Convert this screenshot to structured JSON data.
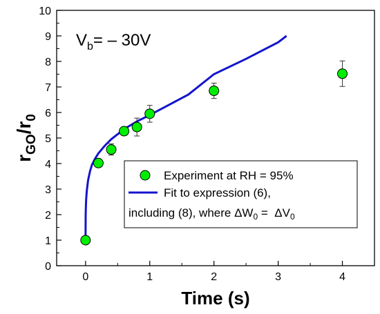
{
  "chart_data": {
    "type": "scatter",
    "xlabel": "Time (s)",
    "ylabel": "r",
    "ylabel_sub1": "GO",
    "ylabel_mid": "/r",
    "ylabel_sub2": "0",
    "xlim": [
      -0.45,
      4.5
    ],
    "ylim": [
      0,
      10
    ],
    "xticks": [
      0,
      1,
      2,
      3,
      4
    ],
    "yticks": [
      0,
      1,
      2,
      3,
      4,
      5,
      6,
      7,
      8,
      9,
      10
    ],
    "annotation": {
      "main": "V",
      "sub": "b",
      "rest": "= – 30V"
    },
    "grid": false,
    "legend_position": "bottom-right",
    "series": [
      {
        "name": "Experiment at RH = 95%",
        "kind": "points",
        "color": "#00ee00",
        "x": [
          0,
          0.2,
          0.4,
          0.6,
          0.8,
          1.0,
          2.0,
          4.0
        ],
        "y": [
          1.0,
          4.02,
          4.55,
          5.27,
          5.43,
          5.95,
          6.85,
          7.52
        ],
        "err": [
          0,
          0,
          0.22,
          0.1,
          0.35,
          0.33,
          0.3,
          0.5
        ]
      },
      {
        "name": "Fit to expression (6),",
        "name_line2": "including (8), where ΔW",
        "name_sub1": "0",
        "name_mid": " =  ΔV",
        "name_sub2": "0",
        "kind": "line",
        "color": "#1414cc",
        "x": [
          0,
          0.002,
          0.005,
          0.01,
          0.02,
          0.04,
          0.07,
          0.1,
          0.15,
          0.2,
          0.3,
          0.4,
          0.5,
          0.6,
          0.8,
          1.0,
          1.3,
          1.6,
          2.0,
          2.5,
          3.0,
          3.13
        ],
        "y": [
          1.0,
          2.0,
          2.3,
          2.6,
          2.95,
          3.35,
          3.7,
          3.95,
          4.2,
          4.4,
          4.7,
          4.95,
          5.15,
          5.35,
          5.65,
          5.9,
          6.3,
          6.7,
          7.5,
          8.1,
          8.75,
          9.0
        ]
      }
    ]
  }
}
